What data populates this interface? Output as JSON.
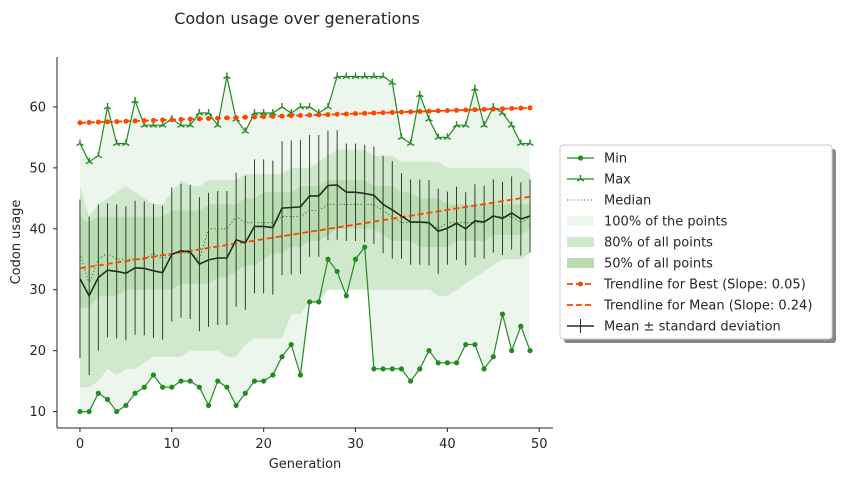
{
  "chart_data": {
    "type": "line",
    "title": "Codon usage over generations",
    "xlabel": "Generation",
    "ylabel": "Codon usage",
    "xlim": [
      -2.5,
      51.5
    ],
    "ylim": [
      7.3,
      68.2
    ],
    "xticks": [
      0,
      10,
      20,
      30,
      40,
      50
    ],
    "yticks": [
      10,
      20,
      30,
      40,
      50,
      60
    ],
    "grid": false,
    "legend_position": "right",
    "x": [
      0,
      1,
      2,
      3,
      4,
      5,
      6,
      7,
      8,
      9,
      10,
      11,
      12,
      13,
      14,
      15,
      16,
      17,
      18,
      19,
      20,
      21,
      22,
      23,
      24,
      25,
      26,
      27,
      28,
      29,
      30,
      31,
      32,
      33,
      34,
      35,
      36,
      37,
      38,
      39,
      40,
      41,
      42,
      43,
      44,
      45,
      46,
      47,
      48,
      49
    ],
    "colors": {
      "green": "#228b22",
      "band100": "#edf6ec",
      "band80": "#d0e8cc",
      "band50": "#b9dcb3",
      "trend": "#ff4500",
      "mean": "#1f2f1f"
    },
    "series": [
      {
        "name": "Min",
        "values": [
          10,
          10,
          13,
          12,
          10,
          11,
          13,
          14,
          16,
          14,
          14,
          15,
          15,
          14,
          11,
          15,
          14,
          11,
          13,
          15,
          15,
          16,
          19,
          21,
          16,
          28,
          28,
          35,
          33,
          29,
          35,
          37,
          17,
          17,
          17,
          17,
          15,
          17,
          20,
          18,
          18,
          18,
          21,
          21,
          17,
          19,
          26,
          20,
          24,
          20
        ]
      },
      {
        "name": "Max",
        "values": [
          54,
          51,
          52,
          60,
          54,
          54,
          61,
          57,
          57,
          57,
          58,
          57,
          57,
          59,
          59,
          57,
          65,
          58,
          56,
          59,
          59,
          59,
          60,
          59,
          60,
          60,
          59,
          60,
          65,
          65,
          65,
          65,
          65,
          65,
          64,
          55,
          54,
          62,
          58,
          55,
          55,
          57,
          57,
          63,
          57,
          60,
          59,
          57,
          54,
          54
        ]
      },
      {
        "name": "Median",
        "values": [
          36,
          31,
          35,
          36,
          35,
          35,
          35,
          35,
          36,
          35,
          36,
          36,
          36,
          35,
          40,
          40,
          40,
          42,
          41,
          41,
          41,
          41,
          42,
          42,
          42,
          43,
          43,
          44,
          44,
          44,
          44,
          44,
          44,
          43,
          42,
          41,
          41,
          41,
          41,
          40,
          41,
          41,
          41,
          41,
          41,
          42,
          42,
          42,
          41,
          42
        ]
      },
      {
        "name": "100% of the points",
        "lower": [
          10,
          10,
          13,
          12,
          10,
          11,
          13,
          14,
          16,
          14,
          14,
          15,
          15,
          14,
          11,
          15,
          14,
          11,
          13,
          15,
          15,
          16,
          19,
          21,
          16,
          28,
          28,
          35,
          33,
          29,
          35,
          37,
          17,
          17,
          17,
          17,
          15,
          17,
          20,
          18,
          18,
          18,
          21,
          21,
          17,
          19,
          26,
          20,
          24,
          20
        ],
        "upper": [
          54,
          51,
          52,
          60,
          54,
          54,
          61,
          57,
          57,
          57,
          58,
          57,
          57,
          59,
          59,
          57,
          65,
          58,
          56,
          59,
          59,
          59,
          60,
          59,
          60,
          60,
          59,
          60,
          65,
          65,
          65,
          65,
          65,
          65,
          64,
          55,
          54,
          62,
          58,
          55,
          55,
          57,
          57,
          63,
          57,
          60,
          59,
          57,
          54,
          54
        ]
      },
      {
        "name": "80% of all points",
        "lower": [
          14,
          14,
          15,
          17,
          16,
          17,
          17,
          18,
          19,
          19,
          19,
          19,
          20,
          20,
          20,
          20,
          19,
          19,
          21,
          22,
          22,
          22,
          22,
          26,
          26,
          28,
          28,
          30,
          30,
          30,
          30,
          30,
          30,
          30,
          30,
          30,
          30,
          30,
          30,
          29,
          29,
          30,
          31,
          32,
          33,
          34,
          35,
          35,
          35,
          36
        ],
        "upper": [
          47,
          42,
          44,
          45,
          46,
          47,
          46,
          45,
          44,
          44,
          46,
          48,
          47,
          47,
          48,
          48,
          48,
          48,
          49,
          49,
          49,
          49,
          49,
          50,
          50,
          50,
          51,
          52,
          53,
          53,
          53,
          53,
          52,
          52,
          52,
          51,
          51,
          51,
          51,
          51,
          50,
          50,
          50,
          50,
          50,
          50,
          50,
          50,
          50,
          49
        ]
      },
      {
        "name": "50% of all points",
        "lower": [
          27,
          27,
          29,
          29,
          29,
          30,
          30,
          30,
          30,
          30,
          30,
          31,
          31,
          31,
          31,
          32,
          32,
          33,
          34,
          34,
          35,
          36,
          36,
          37,
          37,
          38,
          38,
          39,
          40,
          40,
          40,
          40,
          40,
          39,
          38,
          38,
          38,
          37,
          37,
          37,
          37,
          38,
          38,
          38,
          38,
          39,
          39,
          39,
          39,
          40
        ],
        "upper": [
          42,
          41,
          42,
          42,
          42,
          42,
          42,
          42,
          42,
          42,
          43,
          43,
          43,
          43,
          44,
          44,
          44,
          44,
          45,
          45,
          46,
          46,
          46,
          46,
          47,
          47,
          47,
          48,
          48,
          48,
          48,
          48,
          47,
          47,
          47,
          46,
          46,
          45,
          45,
          45,
          44,
          44,
          44,
          44,
          44,
          44,
          44,
          44,
          44,
          44
        ]
      },
      {
        "name": "Trendline for Best (Slope: 0.05)",
        "start": 57.4,
        "slope": 0.05
      },
      {
        "name": "Trendline for Mean (Slope: 0.24)",
        "start": 33.5,
        "slope": 0.24
      },
      {
        "name": "Mean ± standard deviation",
        "values": [
          31.8,
          29,
          32,
          33.2,
          33,
          32.7,
          33.6,
          33.5,
          33.1,
          32.8,
          35.8,
          36.4,
          36.2,
          34.2,
          34.9,
          35.2,
          35.2,
          38.2,
          37.7,
          40.4,
          40.4,
          40.2,
          43.4,
          43.5,
          43.6,
          45.4,
          45.4,
          47.1,
          47.2,
          46,
          46,
          45.8,
          45.5,
          44,
          43.1,
          42.1,
          41.1,
          41.1,
          41,
          39.6,
          40.1,
          40.9,
          40,
          41.3,
          41.1,
          42.1,
          41.7,
          42.6,
          41.6,
          42.1
        ],
        "std": [
          13,
          13,
          12,
          11,
          11,
          11,
          11,
          11,
          11,
          11,
          11,
          11,
          11,
          11,
          11,
          11,
          11,
          11,
          11,
          11,
          11,
          11,
          11,
          11,
          11,
          10,
          10,
          9,
          9,
          8,
          8,
          8,
          8,
          8,
          8,
          7,
          7,
          7,
          7,
          7,
          6,
          6,
          6,
          6,
          6,
          6,
          6,
          6,
          6,
          6
        ]
      }
    ]
  }
}
